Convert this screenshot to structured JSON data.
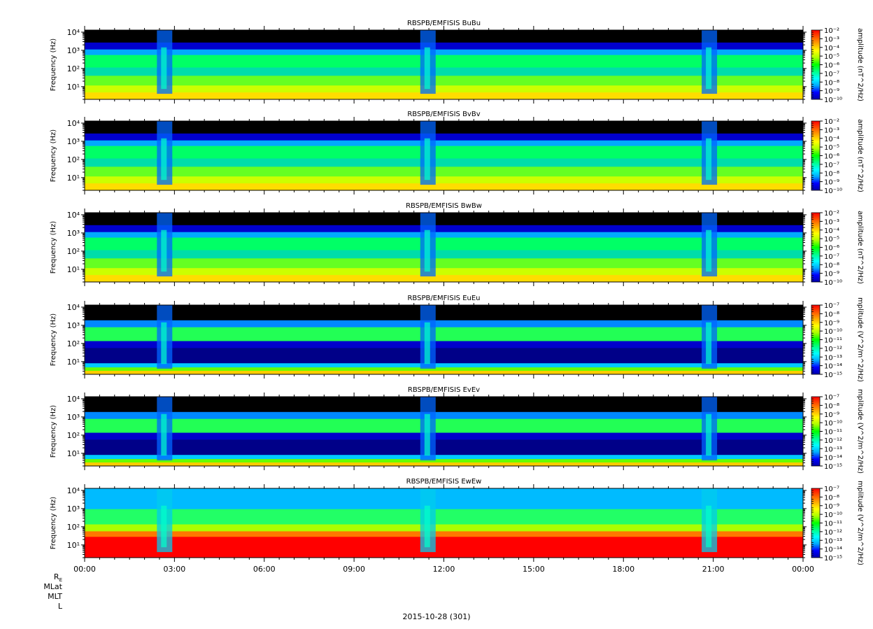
{
  "chart_data": {
    "type": "heatmap",
    "panels": [
      {
        "id": "bubu",
        "title": "RBSPB/EMFISIS  BuBu",
        "ylabel": "Frequency (Hz)",
        "cbar_label": "amplitude (nT^2/Hz)",
        "cbar_ticks": [
          "10⁻²",
          "10⁻³",
          "10⁻⁴",
          "10⁻⁵",
          "10⁻⁶",
          "10⁻⁷",
          "10⁻⁸",
          "10⁻⁹",
          "10⁻¹⁰"
        ],
        "cbar_range": [
          -10,
          -2
        ],
        "field": "B"
      },
      {
        "id": "bvbv",
        "title": "RBSPB/EMFISIS  BvBv",
        "ylabel": "Frequency (Hz)",
        "cbar_label": "amplitude (nT^2/Hz)",
        "cbar_ticks": [
          "10⁻²",
          "10⁻³",
          "10⁻⁴",
          "10⁻⁵",
          "10⁻⁶",
          "10⁻⁷",
          "10⁻⁸",
          "10⁻⁹",
          "10⁻¹⁰"
        ],
        "cbar_range": [
          -10,
          -2
        ],
        "field": "B"
      },
      {
        "id": "bwbw",
        "title": "RBSPB/EMFISIS  BwBw",
        "ylabel": "Frequency (Hz)",
        "cbar_label": "amplitude (nT^2/Hz)",
        "cbar_ticks": [
          "10⁻²",
          "10⁻³",
          "10⁻⁴",
          "10⁻⁵",
          "10⁻⁶",
          "10⁻⁷",
          "10⁻⁸",
          "10⁻⁹",
          "10⁻¹⁰"
        ],
        "cbar_range": [
          -10,
          -2
        ],
        "field": "B"
      },
      {
        "id": "eueu",
        "title": "RBSPB/EMFISIS  EuEu",
        "ylabel": "Frequency (Hz)",
        "cbar_label": "mplitude (V^2/m^2/Hz)",
        "cbar_ticks": [
          "10⁻⁷",
          "10⁻⁸",
          "10⁻⁹",
          "10⁻¹⁰",
          "10⁻¹¹",
          "10⁻¹²",
          "10⁻¹³",
          "10⁻¹⁴",
          "10⁻¹⁵"
        ],
        "cbar_range": [
          -15,
          -7
        ],
        "field": "E"
      },
      {
        "id": "evev",
        "title": "RBSPB/EMFISIS  EvEv",
        "ylabel": "Frequency (Hz)",
        "cbar_label": "mplitude (V^2/m^2/Hz)",
        "cbar_ticks": [
          "10⁻⁷",
          "10⁻⁸",
          "10⁻⁹",
          "10⁻¹⁰",
          "10⁻¹¹",
          "10⁻¹²",
          "10⁻¹³",
          "10⁻¹⁴",
          "10⁻¹⁵"
        ],
        "cbar_range": [
          -15,
          -7
        ],
        "field": "E"
      },
      {
        "id": "ewew",
        "title": "RBSPB/EMFISIS  EwEw",
        "ylabel": "Frequency (Hz)",
        "cbar_label": "mplitude (V^2/m^2/Hz)",
        "cbar_ticks": [
          "10⁻⁷",
          "10⁻⁸",
          "10⁻⁹",
          "10⁻¹⁰",
          "10⁻¹¹",
          "10⁻¹²",
          "10⁻¹³",
          "10⁻¹⁴",
          "10⁻¹⁵"
        ],
        "cbar_range": [
          -15,
          -7
        ],
        "field": "Ew"
      }
    ],
    "y_axis": {
      "scale": "log",
      "range": [
        2,
        13000
      ],
      "tick_labels": [
        "10⁴",
        "10³",
        "10²",
        "10¹"
      ]
    },
    "x_axis": {
      "tick_labels": [
        "00:00",
        "03:00",
        "06:00",
        "09:00",
        "12:00",
        "15:00",
        "18:00",
        "21:00",
        "00:00"
      ],
      "range_hours": [
        0,
        24
      ]
    },
    "colormap": [
      "#0000aa",
      "#0000ff",
      "#00aaff",
      "#00ffff",
      "#00ff88",
      "#00ff00",
      "#aaff00",
      "#ffff00",
      "#ffaa00",
      "#ff5500",
      "#ff0000"
    ],
    "footer_labels": {
      "re": "R",
      "re_sub": "E",
      "mlat": "MLat",
      "mlt": "MLT",
      "l": "L"
    },
    "date_label": "2015-10-28 (301)"
  }
}
